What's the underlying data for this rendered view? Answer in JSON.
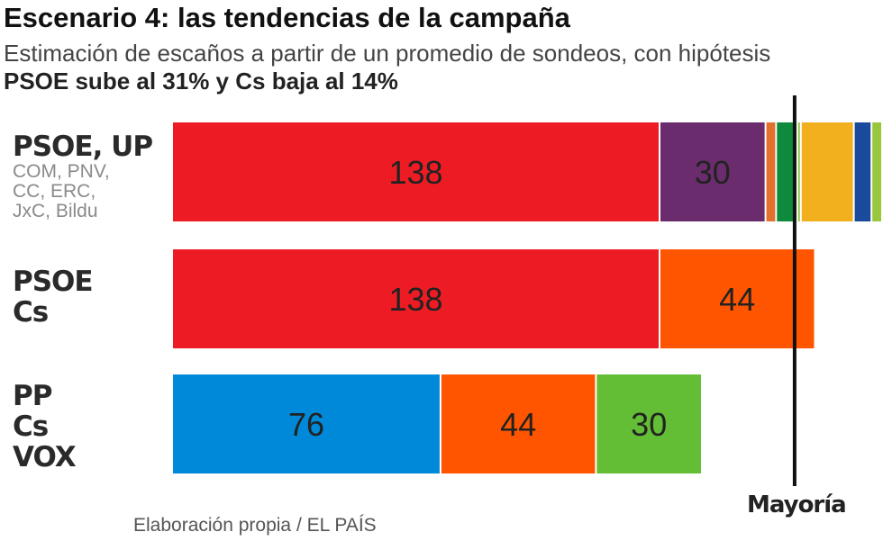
{
  "title": "Escenario 4: las tendencias de la campaña",
  "subtitle": {
    "text": "Estimación de escaños a partir de un promedio de sondeos, con hipótesis ",
    "bold": "PSOE sube al 31% y Cs baja al 14%"
  },
  "source": "Elaboración propia / EL PAÍS",
  "chart_data": {
    "type": "bar",
    "orientation": "horizontal",
    "stacked": true,
    "unit": "escaños",
    "majority": {
      "label": "Mayoría",
      "value": 176
    },
    "xlim": [
      0,
      215
    ],
    "rows": [
      {
        "label_lines": [
          "PSOE, UP"
        ],
        "sublabel_lines": [
          "COM, PNV,",
          "CC, ERC,",
          "JxC, Bildu"
        ],
        "segments": [
          {
            "party": "PSOE",
            "value": 138,
            "color": "#ed1c24",
            "show_value": true
          },
          {
            "party": "UP",
            "value": 30,
            "color": "#6b2c6e",
            "show_value": true
          },
          {
            "party": "COM",
            "value": 3,
            "color": "#e0702c",
            "show_value": false
          },
          {
            "party": "PNV",
            "value": 6,
            "color": "#0f8a3c",
            "show_value": false
          },
          {
            "party": "CC",
            "value": 1,
            "color": "#8dc63f",
            "show_value": false
          },
          {
            "party": "ERC",
            "value": 15,
            "color": "#f2b01e",
            "show_value": false
          },
          {
            "party": "JxC",
            "value": 5,
            "color": "#1a4a9c",
            "show_value": false
          },
          {
            "party": "Bildu",
            "value": 3,
            "color": "#9ac63c",
            "show_value": false
          }
        ]
      },
      {
        "label_lines": [
          "PSOE",
          "Cs"
        ],
        "sublabel_lines": [],
        "segments": [
          {
            "party": "PSOE",
            "value": 138,
            "color": "#ed1c24",
            "show_value": true
          },
          {
            "party": "Cs",
            "value": 44,
            "color": "#ff5500",
            "show_value": true
          }
        ]
      },
      {
        "label_lines": [
          "PP",
          "Cs",
          "VOX"
        ],
        "sublabel_lines": [],
        "segments": [
          {
            "party": "PP",
            "value": 76,
            "color": "#0089d8",
            "show_value": true
          },
          {
            "party": "Cs",
            "value": 44,
            "color": "#ff5500",
            "show_value": true
          },
          {
            "party": "VOX",
            "value": 30,
            "color": "#63be35",
            "show_value": true
          }
        ]
      }
    ]
  }
}
